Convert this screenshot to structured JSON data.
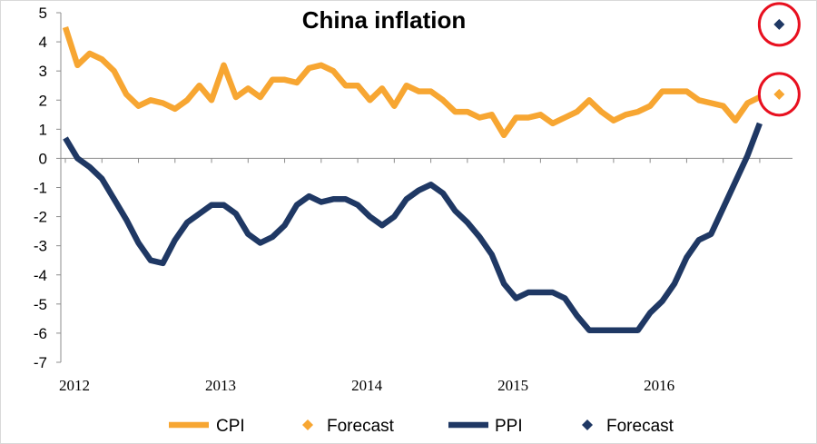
{
  "chart_data": {
    "type": "line",
    "title": "China inflation",
    "xlabel": "",
    "ylabel": "",
    "ylim": [
      -7,
      5
    ],
    "yticks": [
      5,
      4,
      3,
      2,
      1,
      0,
      -1,
      -2,
      -3,
      -4,
      -5,
      -6,
      -7
    ],
    "x_tick_labels": [
      "2012",
      "2013",
      "2014",
      "2015",
      "2016"
    ],
    "x_range": [
      "2012-01",
      "2016-12"
    ],
    "grid": false,
    "legend_position": "bottom",
    "series": [
      {
        "name": "CPI",
        "color": "#f7a632",
        "style": "line",
        "x": [
          "2012-01",
          "2012-02",
          "2012-03",
          "2012-04",
          "2012-05",
          "2012-06",
          "2012-07",
          "2012-08",
          "2012-09",
          "2012-10",
          "2012-11",
          "2012-12",
          "2013-01",
          "2013-02",
          "2013-03",
          "2013-04",
          "2013-05",
          "2013-06",
          "2013-07",
          "2013-08",
          "2013-09",
          "2013-10",
          "2013-11",
          "2013-12",
          "2014-01",
          "2014-02",
          "2014-03",
          "2014-04",
          "2014-05",
          "2014-06",
          "2014-07",
          "2014-08",
          "2014-09",
          "2014-10",
          "2014-11",
          "2014-12",
          "2015-01",
          "2015-02",
          "2015-03",
          "2015-04",
          "2015-05",
          "2015-06",
          "2015-07",
          "2015-08",
          "2015-09",
          "2015-10",
          "2015-11",
          "2015-12",
          "2016-01",
          "2016-02",
          "2016-03",
          "2016-04",
          "2016-05",
          "2016-06",
          "2016-07",
          "2016-08",
          "2016-09",
          "2016-10"
        ],
        "values": [
          4.5,
          3.2,
          3.6,
          3.4,
          3.0,
          2.2,
          1.8,
          2.0,
          1.9,
          1.7,
          2.0,
          2.5,
          2.0,
          3.2,
          2.1,
          2.4,
          2.1,
          2.7,
          2.7,
          2.6,
          3.1,
          3.2,
          3.0,
          2.5,
          2.5,
          2.0,
          2.4,
          1.8,
          2.5,
          2.3,
          2.3,
          2.0,
          1.6,
          1.6,
          1.4,
          1.5,
          0.8,
          1.4,
          1.4,
          1.5,
          1.2,
          1.4,
          1.6,
          2.0,
          1.6,
          1.3,
          1.5,
          1.6,
          1.8,
          2.3,
          2.3,
          2.3,
          2.0,
          1.9,
          1.8,
          1.3,
          1.9,
          2.1
        ]
      },
      {
        "name": "Forecast",
        "color": "#f7a632",
        "style": "marker",
        "x": [
          "2016-11"
        ],
        "values": [
          2.2
        ]
      },
      {
        "name": "PPI",
        "color": "#1f3864",
        "style": "line",
        "x": [
          "2012-01",
          "2012-02",
          "2012-03",
          "2012-04",
          "2012-05",
          "2012-06",
          "2012-07",
          "2012-08",
          "2012-09",
          "2012-10",
          "2012-11",
          "2012-12",
          "2013-01",
          "2013-02",
          "2013-03",
          "2013-04",
          "2013-05",
          "2013-06",
          "2013-07",
          "2013-08",
          "2013-09",
          "2013-10",
          "2013-11",
          "2013-12",
          "2014-01",
          "2014-02",
          "2014-03",
          "2014-04",
          "2014-05",
          "2014-06",
          "2014-07",
          "2014-08",
          "2014-09",
          "2014-10",
          "2014-11",
          "2014-12",
          "2015-01",
          "2015-02",
          "2015-03",
          "2015-04",
          "2015-05",
          "2015-06",
          "2015-07",
          "2015-08",
          "2015-09",
          "2015-10",
          "2015-11",
          "2015-12",
          "2016-01",
          "2016-02",
          "2016-03",
          "2016-04",
          "2016-05",
          "2016-06",
          "2016-07",
          "2016-08",
          "2016-09",
          "2016-10"
        ],
        "values": [
          0.7,
          0.0,
          -0.3,
          -0.7,
          -1.4,
          -2.1,
          -2.9,
          -3.5,
          -3.6,
          -2.8,
          -2.2,
          -1.9,
          -1.6,
          -1.6,
          -1.9,
          -2.6,
          -2.9,
          -2.7,
          -2.3,
          -1.6,
          -1.3,
          -1.5,
          -1.4,
          -1.4,
          -1.6,
          -2.0,
          -2.3,
          -2.0,
          -1.4,
          -1.1,
          -0.9,
          -1.2,
          -1.8,
          -2.2,
          -2.7,
          -3.3,
          -4.3,
          -4.8,
          -4.6,
          -4.6,
          -4.6,
          -4.8,
          -5.4,
          -5.9,
          -5.9,
          -5.9,
          -5.9,
          -5.9,
          -5.3,
          -4.9,
          -4.3,
          -3.4,
          -2.8,
          -2.6,
          -1.7,
          -0.8,
          0.1,
          1.2
        ]
      },
      {
        "name": "Forecast",
        "color": "#1f3864",
        "style": "marker",
        "x": [
          "2016-11"
        ],
        "values": [
          4.6
        ]
      }
    ],
    "annotations": [
      {
        "type": "circle",
        "color": "#e8101f",
        "around": "PPI Forecast"
      },
      {
        "type": "circle",
        "color": "#e8101f",
        "around": "CPI Forecast"
      }
    ]
  }
}
